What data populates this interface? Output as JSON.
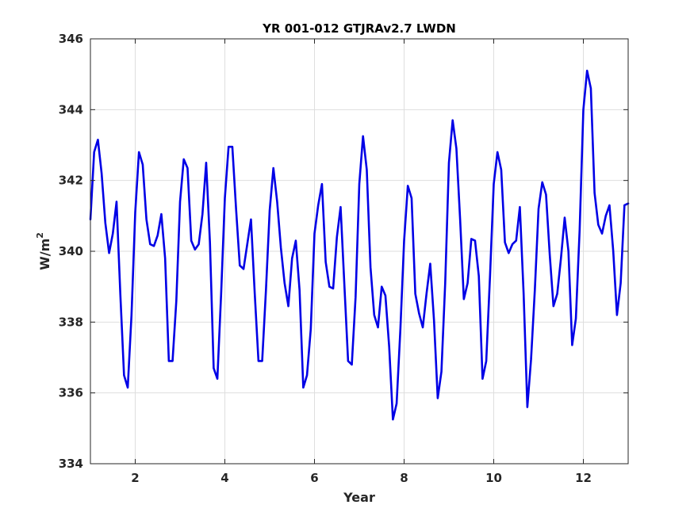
{
  "chart_data": {
    "type": "line",
    "title": "YR 001-012 GTJRAv2.7 LWDN",
    "xlabel": "Year",
    "ylabel_base": "W/m",
    "ylabel_sup": "2",
    "xlim": [
      1,
      13
    ],
    "ylim": [
      334,
      346
    ],
    "xticks": [
      2,
      4,
      6,
      8,
      10,
      12
    ],
    "yticks": [
      334,
      336,
      338,
      340,
      342,
      344,
      346
    ],
    "grid": true,
    "legend": "none",
    "colors": {
      "line": "#0000e6",
      "grid": "#dedede",
      "axis": "#262626"
    },
    "series": [
      {
        "x": [
          1.0,
          1.083,
          1.167,
          1.25,
          1.333,
          1.417,
          1.5,
          1.583,
          1.667,
          1.75,
          1.833,
          1.917,
          2.0,
          2.083,
          2.167,
          2.25,
          2.333,
          2.417,
          2.5,
          2.583,
          2.667,
          2.75,
          2.833,
          2.917,
          3.0,
          3.083,
          3.167,
          3.25,
          3.333,
          3.417,
          3.5,
          3.583,
          3.667,
          3.75,
          3.833,
          3.917,
          4.0,
          4.083,
          4.167,
          4.25,
          4.333,
          4.417,
          4.5,
          4.583,
          4.667,
          4.75,
          4.833,
          4.917,
          5.0,
          5.083,
          5.167,
          5.25,
          5.333,
          5.417,
          5.5,
          5.583,
          5.667,
          5.75,
          5.833,
          5.917,
          6.0,
          6.083,
          6.167,
          6.25,
          6.333,
          6.417,
          6.5,
          6.583,
          6.667,
          6.75,
          6.833,
          6.917,
          7.0,
          7.083,
          7.167,
          7.25,
          7.333,
          7.417,
          7.5,
          7.583,
          7.667,
          7.75,
          7.833,
          7.917,
          8.0,
          8.083,
          8.167,
          8.25,
          8.333,
          8.417,
          8.5,
          8.583,
          8.667,
          8.75,
          8.833,
          8.917,
          9.0,
          9.083,
          9.167,
          9.25,
          9.333,
          9.417,
          9.5,
          9.583,
          9.667,
          9.75,
          9.833,
          9.917,
          10.0,
          10.083,
          10.167,
          10.25,
          10.333,
          10.417,
          10.5,
          10.583,
          10.667,
          10.75,
          10.833,
          10.917,
          11.0,
          11.083,
          11.167,
          11.25,
          11.333,
          11.417,
          11.5,
          11.583,
          11.667,
          11.75,
          11.833,
          11.917,
          12.0,
          12.083,
          12.167,
          12.25,
          12.333,
          12.417,
          12.5,
          12.583,
          12.667,
          12.75,
          12.833,
          12.917,
          13.0
        ],
        "y": [
          340.9,
          342.8,
          343.15,
          342.2,
          340.8,
          339.95,
          340.5,
          341.4,
          338.8,
          336.5,
          336.15,
          338.2,
          341.1,
          342.8,
          342.45,
          340.9,
          340.2,
          340.15,
          340.45,
          341.05,
          339.8,
          336.9,
          336.9,
          338.6,
          341.4,
          342.6,
          342.35,
          340.3,
          340.05,
          340.2,
          341.05,
          342.5,
          340.25,
          336.7,
          336.4,
          338.8,
          341.5,
          342.95,
          342.95,
          341.2,
          339.6,
          339.5,
          340.2,
          340.9,
          338.8,
          336.9,
          336.9,
          338.9,
          341.15,
          342.35,
          341.4,
          340.1,
          339.1,
          338.45,
          339.8,
          340.3,
          338.9,
          336.15,
          336.5,
          337.8,
          340.5,
          341.3,
          341.9,
          339.7,
          339.0,
          338.95,
          340.4,
          341.25,
          339.05,
          336.9,
          336.8,
          338.7,
          341.9,
          343.25,
          342.3,
          339.55,
          338.2,
          337.85,
          339.0,
          338.75,
          337.3,
          335.25,
          335.7,
          337.8,
          340.3,
          341.85,
          341.5,
          338.8,
          338.25,
          337.85,
          338.8,
          339.65,
          338.05,
          335.85,
          336.6,
          339.1,
          342.5,
          343.7,
          342.9,
          340.9,
          338.65,
          339.1,
          340.35,
          340.3,
          339.3,
          336.4,
          336.9,
          339.3,
          341.9,
          342.8,
          342.3,
          340.25,
          339.95,
          340.2,
          340.3,
          341.25,
          338.8,
          335.6,
          336.95,
          338.9,
          341.2,
          341.95,
          341.6,
          339.9,
          338.45,
          338.8,
          339.8,
          340.95,
          340.0,
          337.35,
          338.1,
          340.6,
          344.0,
          345.1,
          344.6,
          341.65,
          340.75,
          340.5,
          341.0,
          341.3,
          340.0,
          338.2,
          339.1,
          341.3,
          341.35
        ]
      }
    ]
  }
}
